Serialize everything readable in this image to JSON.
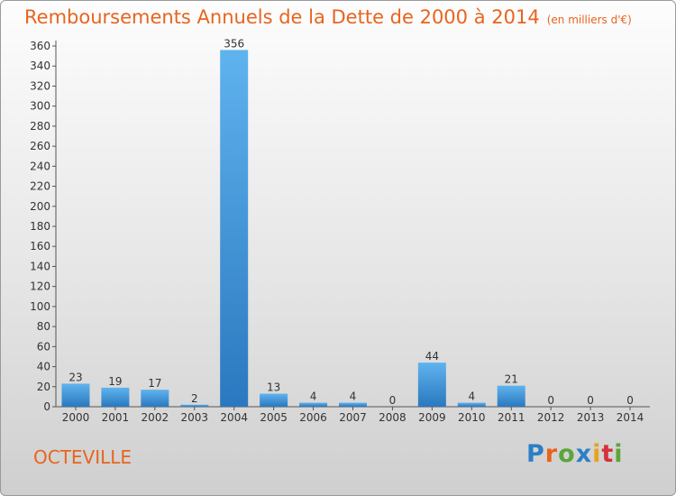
{
  "chart_data": {
    "type": "bar",
    "title": "Remboursements Annuels de la Dette de 2000 à 2014",
    "subtitle": "(en milliers d'€)",
    "categories": [
      "2000",
      "2001",
      "2002",
      "2003",
      "2004",
      "2005",
      "2006",
      "2007",
      "2008",
      "2009",
      "2010",
      "2011",
      "2012",
      "2013",
      "2014"
    ],
    "values": [
      23,
      19,
      17,
      2,
      356,
      13,
      4,
      4,
      0,
      44,
      4,
      21,
      0,
      0,
      0
    ],
    "data_labels": [
      "23",
      "19",
      "17",
      "2",
      "356",
      "13",
      "4",
      "4",
      "0",
      "44",
      "4",
      "21",
      "0",
      "0",
      "0"
    ],
    "ylim": [
      0,
      360
    ],
    "yticks": [
      0,
      20,
      40,
      60,
      80,
      100,
      120,
      140,
      160,
      180,
      200,
      220,
      240,
      260,
      280,
      300,
      320,
      340,
      360
    ],
    "grid": false,
    "legend": "none",
    "bar_color": "#3a93d6"
  },
  "footer": {
    "city": "OCTEVILLE",
    "logo_letters": [
      "P",
      "r",
      "o",
      "x",
      "i",
      "t",
      "i"
    ],
    "logo_colors": [
      "#2c7fc5",
      "#e8641e",
      "#5aa63a",
      "#2c7fc5",
      "#e8a21e",
      "#d6303c",
      "#5aa63a"
    ]
  }
}
